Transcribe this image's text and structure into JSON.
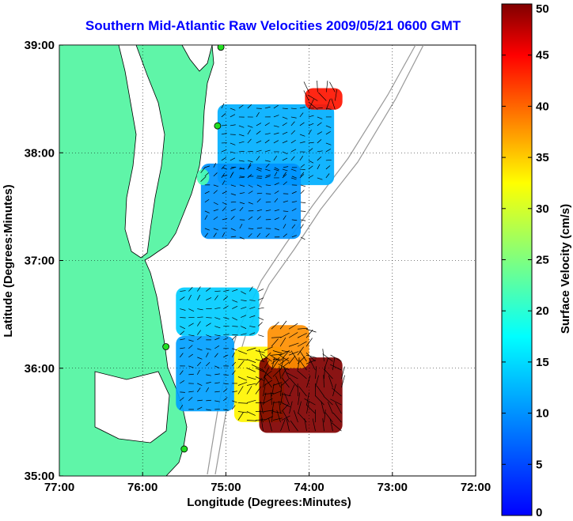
{
  "chart_data": {
    "type": "heatmap",
    "title": "Southern Mid-Atlantic Raw Velocities 2009/05/21 0600 GMT",
    "xlabel": "Longitude (Degrees:Minutes)",
    "ylabel": "Latitude (Degrees:Minutes)",
    "colorbar_label": "Surface Velocity (cm/s)",
    "xlim": [
      -77,
      -72
    ],
    "ylim": [
      35,
      39
    ],
    "clim": [
      0,
      50
    ],
    "x_ticks": [
      {
        "value": -77,
        "label": "77:00"
      },
      {
        "value": -76,
        "label": "76:00"
      },
      {
        "value": -75,
        "label": "75:00"
      },
      {
        "value": -74,
        "label": "74:00"
      },
      {
        "value": -73,
        "label": "73:00"
      },
      {
        "value": -72,
        "label": "72:00"
      }
    ],
    "y_ticks": [
      {
        "value": 35,
        "label": "35:00"
      },
      {
        "value": 36,
        "label": "36:00"
      },
      {
        "value": 37,
        "label": "37:00"
      },
      {
        "value": 38,
        "label": "38:00"
      },
      {
        "value": 39,
        "label": "39:00"
      }
    ],
    "colorbar_ticks": [
      {
        "value": 0,
        "label": "0"
      },
      {
        "value": 5,
        "label": "5"
      },
      {
        "value": 10,
        "label": "10"
      },
      {
        "value": 15,
        "label": "15"
      },
      {
        "value": 20,
        "label": "20"
      },
      {
        "value": 25,
        "label": "25"
      },
      {
        "value": 30,
        "label": "30"
      },
      {
        "value": 35,
        "label": "35"
      },
      {
        "value": 40,
        "label": "40"
      },
      {
        "value": 45,
        "label": "45"
      },
      {
        "value": 50,
        "label": "50"
      }
    ],
    "grid": true,
    "colormap": "jet",
    "land_color": "#5ff5a8",
    "coastline_color": "#000000",
    "title_color": "#0000ff",
    "regions": [
      {
        "speed": 12,
        "lon": [
          -75.1,
          -73.7
        ],
        "lat": [
          37.7,
          38.45
        ]
      },
      {
        "speed": 10,
        "lon": [
          -75.3,
          -74.1
        ],
        "lat": [
          37.2,
          37.9
        ]
      },
      {
        "speed": 44,
        "lon": [
          -74.05,
          -73.6
        ],
        "lat": [
          38.4,
          38.6
        ]
      },
      {
        "speed": 22,
        "lon": [
          -75.35,
          -75.2
        ],
        "lat": [
          37.7,
          37.85
        ]
      },
      {
        "speed": 14,
        "lon": [
          -75.6,
          -74.6
        ],
        "lat": [
          36.3,
          36.75
        ]
      },
      {
        "speed": 11,
        "lon": [
          -75.6,
          -74.9
        ],
        "lat": [
          35.6,
          36.3
        ]
      },
      {
        "speed": 33,
        "lon": [
          -74.9,
          -74.3
        ],
        "lat": [
          35.5,
          36.2
        ]
      },
      {
        "speed": 50,
        "lon": [
          -74.6,
          -73.6
        ],
        "lat": [
          35.4,
          36.1
        ]
      },
      {
        "speed": 38,
        "lon": [
          -74.5,
          -74.0
        ],
        "lat": [
          36.0,
          36.4
        ]
      }
    ],
    "stations": [
      {
        "lon": -75.06,
        "lat": 38.98,
        "name": ""
      },
      {
        "lon": -75.1,
        "lat": 38.25,
        "name": ""
      },
      {
        "lon": -75.72,
        "lat": 36.2,
        "name": ""
      },
      {
        "lon": -75.5,
        "lat": 35.25,
        "name": ""
      }
    ]
  }
}
